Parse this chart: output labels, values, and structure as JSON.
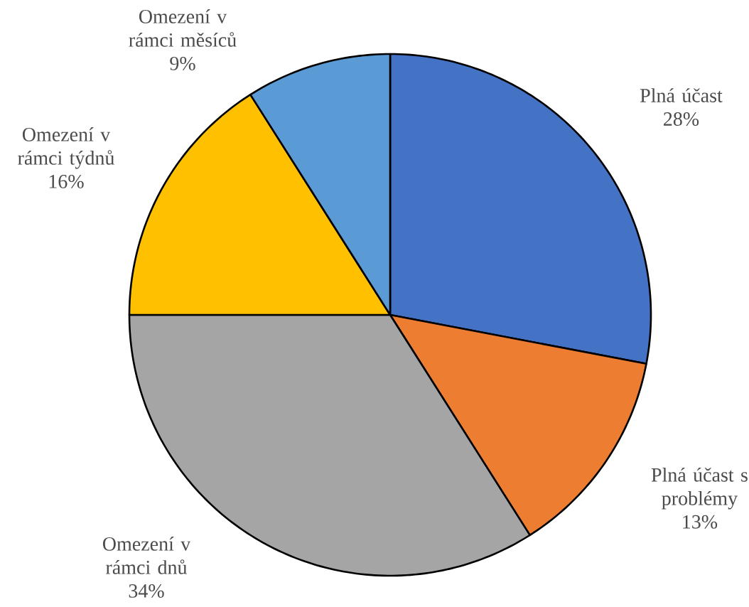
{
  "chart_data": {
    "type": "pie",
    "categories": [
      "Plná účast",
      "Plná účast s problémy",
      "Omezení v rámci dnů",
      "Omezení v rámci týdnů",
      "Omezení v rámci měsíců"
    ],
    "values": [
      28,
      13,
      34,
      16,
      9
    ],
    "value_labels": [
      "28%",
      "13%",
      "34%",
      "16%",
      "9%"
    ],
    "colors": [
      "#4472c4",
      "#ed7d31",
      "#a5a5a5",
      "#ffc000",
      "#5b9bd5"
    ]
  }
}
